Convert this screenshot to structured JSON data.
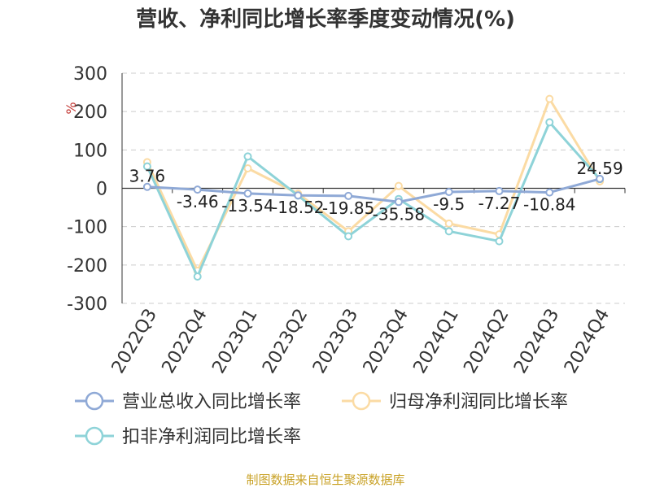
{
  "chart_data": {
    "type": "line",
    "title": "营收、净利同比增长率季度变动情况(%)",
    "ylabel": "%",
    "ylim": [
      -300,
      300
    ],
    "yticks": [
      300,
      200,
      100,
      0,
      -100,
      -200,
      -300
    ],
    "categories": [
      "2022Q3",
      "2022Q4",
      "2023Q1",
      "2023Q2",
      "2023Q3",
      "2023Q4",
      "2024Q1",
      "2024Q2",
      "2024Q3",
      "2024Q4"
    ],
    "series": [
      {
        "name": "营业总收入同比增长率",
        "color": "#8fa9d6",
        "values": [
          3.76,
          -3.46,
          -13.54,
          -18.52,
          -19.85,
          -35.58,
          -9.5,
          -7.27,
          -10.84,
          24.59
        ],
        "labels": [
          "3.76",
          "-3.46",
          "-13.54",
          "-18.52",
          "-19.85",
          "-35.58",
          "-9.5",
          "-7.27",
          "-10.84",
          "24.59"
        ]
      },
      {
        "name": "归母净利润同比增长率",
        "color": "#fbdba4",
        "values": [
          68,
          -215,
          52,
          -14,
          -112,
          6,
          -92,
          -120,
          233,
          18
        ]
      },
      {
        "name": "扣非净利润同比增长率",
        "color": "#8ed3d8",
        "values": [
          57,
          -230,
          83,
          -19,
          -125,
          -28,
          -112,
          -138,
          172,
          24
        ]
      }
    ],
    "legend_position": "bottom-left",
    "grid": true
  },
  "source": "制图数据来自恒生聚源数据库"
}
